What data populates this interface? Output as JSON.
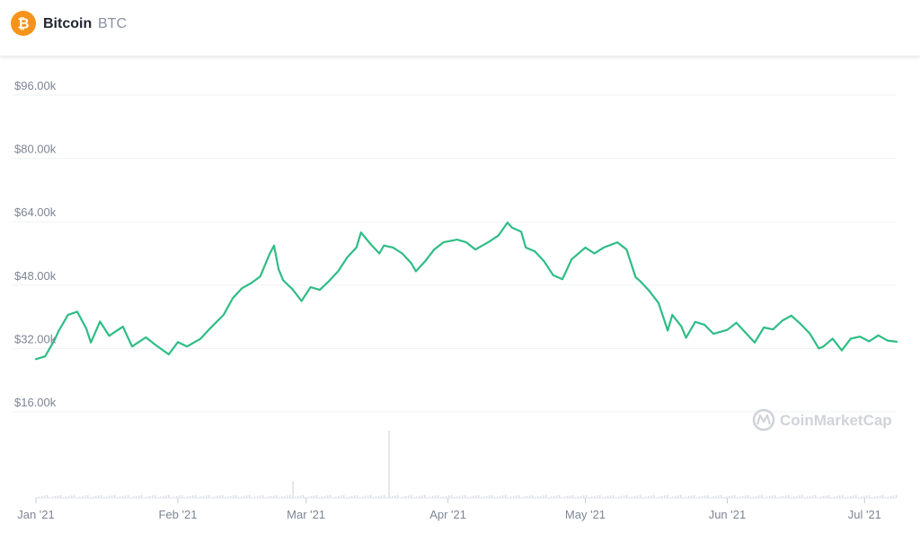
{
  "header": {
    "coin_name": "Bitcoin",
    "coin_symbol": "BTC",
    "logo_glyph": "₿",
    "logo_color": "#f7931a"
  },
  "watermark": "CoinMarketCap",
  "colors": {
    "line": "#2ebd85",
    "grid": "#eff2f5",
    "volume": "#d9dde3",
    "axis_text": "#7d8595"
  },
  "chart_data": {
    "type": "line",
    "title": "",
    "xlabel": "",
    "ylabel": "",
    "x_range": [
      "2021-01-01",
      "2021-07-08"
    ],
    "ylim": [
      16000,
      100000
    ],
    "y_ticks": [
      16000,
      32000,
      48000,
      64000,
      80000,
      96000
    ],
    "y_tick_labels": [
      "$16.00k",
      "$32.00k",
      "$48.00k",
      "$64.00k",
      "$80.00k",
      "$96.00k"
    ],
    "x_ticks": [
      "2021-01-01",
      "2021-02-01",
      "2021-03-01",
      "2021-04-01",
      "2021-05-01",
      "2021-06-01",
      "2021-07-01"
    ],
    "x_tick_labels": [
      "Jan '21",
      "Feb '21",
      "Mar '21",
      "Apr '21",
      "May '21",
      "Jun '21",
      "Jul '21"
    ],
    "grid": true,
    "series": [
      {
        "values": [
          [
            "2021-01-01",
            29300
          ],
          [
            "2021-01-03",
            30000
          ],
          [
            "2021-01-05",
            34000
          ],
          [
            "2021-01-06",
            36500
          ],
          [
            "2021-01-08",
            40500
          ],
          [
            "2021-01-10",
            41300
          ],
          [
            "2021-01-12",
            37000
          ],
          [
            "2021-01-13",
            33500
          ],
          [
            "2021-01-15",
            38800
          ],
          [
            "2021-01-17",
            35200
          ],
          [
            "2021-01-20",
            37500
          ],
          [
            "2021-01-22",
            32500
          ],
          [
            "2021-01-25",
            34800
          ],
          [
            "2021-01-27",
            33000
          ],
          [
            "2021-01-30",
            30500
          ],
          [
            "2021-02-01",
            33600
          ],
          [
            "2021-02-03",
            32500
          ],
          [
            "2021-02-06",
            34500
          ],
          [
            "2021-02-08",
            37000
          ],
          [
            "2021-02-11",
            40500
          ],
          [
            "2021-02-13",
            44700
          ],
          [
            "2021-02-15",
            47200
          ],
          [
            "2021-02-17",
            48500
          ],
          [
            "2021-02-19",
            50200
          ],
          [
            "2021-02-21",
            55800
          ],
          [
            "2021-02-22",
            58000
          ],
          [
            "2021-02-23",
            52000
          ],
          [
            "2021-02-24",
            49200
          ],
          [
            "2021-02-26",
            47000
          ],
          [
            "2021-02-28",
            44000
          ],
          [
            "2021-03-02",
            47500
          ],
          [
            "2021-03-04",
            46800
          ],
          [
            "2021-03-06",
            49000
          ],
          [
            "2021-03-08",
            51500
          ],
          [
            "2021-03-10",
            55000
          ],
          [
            "2021-03-12",
            57500
          ],
          [
            "2021-03-13",
            61300
          ],
          [
            "2021-03-15",
            58500
          ],
          [
            "2021-03-17",
            56000
          ],
          [
            "2021-03-18",
            58000
          ],
          [
            "2021-03-20",
            57500
          ],
          [
            "2021-03-22",
            56000
          ],
          [
            "2021-03-24",
            53500
          ],
          [
            "2021-03-25",
            51500
          ],
          [
            "2021-03-27",
            54000
          ],
          [
            "2021-03-29",
            57000
          ],
          [
            "2021-03-31",
            58800
          ],
          [
            "2021-04-03",
            59500
          ],
          [
            "2021-04-05",
            58800
          ],
          [
            "2021-04-07",
            57000
          ],
          [
            "2021-04-10",
            59000
          ],
          [
            "2021-04-12",
            60500
          ],
          [
            "2021-04-14",
            63800
          ],
          [
            "2021-04-15",
            62500
          ],
          [
            "2021-04-17",
            61500
          ],
          [
            "2021-04-18",
            57500
          ],
          [
            "2021-04-20",
            56500
          ],
          [
            "2021-04-22",
            54000
          ],
          [
            "2021-04-24",
            50500
          ],
          [
            "2021-04-26",
            49500
          ],
          [
            "2021-04-28",
            54500
          ],
          [
            "2021-05-01",
            57500
          ],
          [
            "2021-05-03",
            56000
          ],
          [
            "2021-05-05",
            57500
          ],
          [
            "2021-05-08",
            58800
          ],
          [
            "2021-05-10",
            57000
          ],
          [
            "2021-05-12",
            50000
          ],
          [
            "2021-05-13",
            49000
          ],
          [
            "2021-05-15",
            46500
          ],
          [
            "2021-05-17",
            43500
          ],
          [
            "2021-05-19",
            36500
          ],
          [
            "2021-05-20",
            40500
          ],
          [
            "2021-05-22",
            37500
          ],
          [
            "2021-05-23",
            34700
          ],
          [
            "2021-05-25",
            38700
          ],
          [
            "2021-05-27",
            38000
          ],
          [
            "2021-05-29",
            35700
          ],
          [
            "2021-06-01",
            36700
          ],
          [
            "2021-06-03",
            38500
          ],
          [
            "2021-06-05",
            36000
          ],
          [
            "2021-06-07",
            33500
          ],
          [
            "2021-06-09",
            37300
          ],
          [
            "2021-06-11",
            36800
          ],
          [
            "2021-06-13",
            39000
          ],
          [
            "2021-06-15",
            40300
          ],
          [
            "2021-06-17",
            38200
          ],
          [
            "2021-06-19",
            35800
          ],
          [
            "2021-06-21",
            32000
          ],
          [
            "2021-06-22",
            32500
          ],
          [
            "2021-06-24",
            34500
          ],
          [
            "2021-06-26",
            31500
          ],
          [
            "2021-06-28",
            34500
          ],
          [
            "2021-06-30",
            35000
          ],
          [
            "2021-07-02",
            33800
          ],
          [
            "2021-07-04",
            35300
          ],
          [
            "2021-07-06",
            34000
          ],
          [
            "2021-07-08",
            33700
          ]
        ]
      }
    ],
    "volume_spikes": [
      {
        "date": "2021-02-26",
        "level": 0.25
      },
      {
        "date": "2021-03-19",
        "level": 1.0
      }
    ]
  }
}
